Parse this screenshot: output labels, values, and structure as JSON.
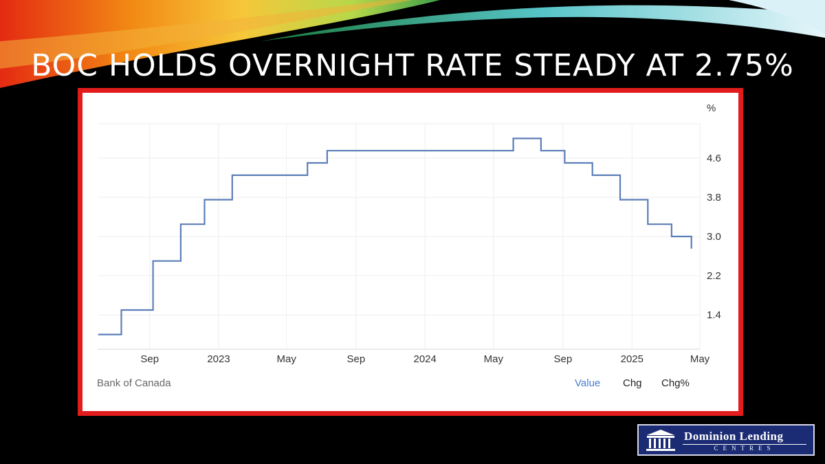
{
  "slide": {
    "title": "BOC HOLDS OVERNIGHT RATE STEADY AT 2.75%"
  },
  "chart_data": {
    "type": "line",
    "step": true,
    "unit": "%",
    "source": "Bank of Canada",
    "x": [
      "2022-06-02",
      "2022-07-13",
      "2022-09-07",
      "2022-10-26",
      "2022-12-07",
      "2023-01-25",
      "2023-06-07",
      "2023-07-12",
      "2024-06-05",
      "2024-07-24",
      "2024-09-04",
      "2024-10-23",
      "2024-12-11",
      "2025-01-29",
      "2025-03-12",
      "2025-04-16"
    ],
    "series": [
      {
        "values": [
          1.0,
          1.5,
          2.5,
          3.25,
          3.75,
          4.25,
          4.5,
          4.75,
          5.0,
          4.75,
          4.5,
          4.25,
          3.75,
          3.25,
          3.0,
          2.75
        ],
        "color": "#5b7db8"
      }
    ],
    "x_end": "2025-04-16",
    "x_tick_labels": [
      "Sep",
      "2023",
      "May",
      "Sep",
      "2024",
      "May",
      "Sep",
      "2025",
      "May"
    ],
    "x_tick_dates": [
      "2022-09-01",
      "2023-01-01",
      "2023-05-01",
      "2023-09-01",
      "2024-01-01",
      "2024-05-01",
      "2024-09-01",
      "2025-01-01",
      "2025-05-01"
    ],
    "y_ticks": [
      "1.4",
      "2.2",
      "3.0",
      "3.8",
      "4.6"
    ],
    "y_tick_values": [
      1.4,
      2.2,
      3.0,
      3.8,
      4.6
    ],
    "xlim": [
      "2022-06-01",
      "2025-05-01"
    ],
    "ylim": [
      0.7,
      5.3
    ],
    "grid": true,
    "tabs": [
      {
        "label": "Value",
        "active": true
      },
      {
        "label": "Chg",
        "active": false
      },
      {
        "label": "Chg%",
        "active": false
      }
    ],
    "colors": {
      "line": "#5b7db8",
      "tab_active": "#4a7bd0",
      "tab": "#222222",
      "grid": "#eeeeee"
    }
  },
  "logo": {
    "line1": "Dominion Lending",
    "line2": "CENTRES",
    "icon": "building-columns-icon"
  },
  "colors": {
    "background": "#000000",
    "frame": "#e21c1c",
    "logo_bg": "#1c2c74"
  }
}
